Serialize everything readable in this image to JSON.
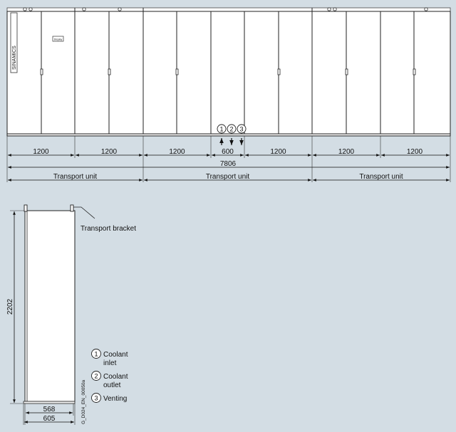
{
  "front_view": {
    "brand_label": "SINAMICS",
    "panel_label": "Display",
    "markers": [
      "1",
      "2",
      "3"
    ],
    "widths": [
      {
        "label": "1200"
      },
      {
        "label": "1200"
      },
      {
        "label": "1200"
      },
      {
        "label": "600"
      },
      {
        "label": "1200"
      },
      {
        "label": "1200"
      },
      {
        "label": "1200"
      }
    ],
    "total_width": "7806",
    "transport_units": [
      "Transport unit",
      "Transport unit",
      "Transport unit"
    ]
  },
  "side_view": {
    "transport_bracket": "Transport bracket",
    "height": "2202",
    "depth_inner": "568",
    "depth_outer": "605",
    "drawing_id": "G_D024_EN_00050a"
  },
  "legend": [
    {
      "number": "1",
      "lines": [
        "Coolant",
        "inlet"
      ]
    },
    {
      "number": "2",
      "lines": [
        "Coolant",
        "outlet"
      ]
    },
    {
      "number": "3",
      "lines": [
        "Venting"
      ]
    }
  ]
}
